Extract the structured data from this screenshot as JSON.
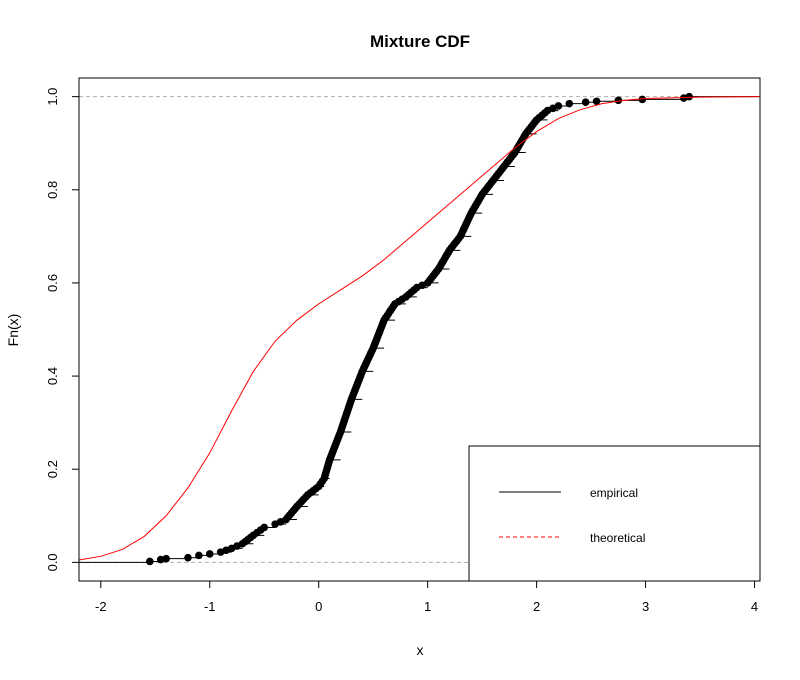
{
  "chart_data": {
    "type": "line",
    "title": "Mixture CDF",
    "xlabel": "x",
    "ylabel": "Fn(x)",
    "xlim": [
      -2.2,
      4.05
    ],
    "ylim": [
      -0.04,
      1.04
    ],
    "xticks": [
      "-2",
      "-1",
      "0",
      "1",
      "2",
      "3",
      "4"
    ],
    "yticks": [
      "0.0",
      "0.2",
      "0.4",
      "0.6",
      "0.8",
      "1.0"
    ],
    "reference_lines": [
      0,
      1
    ],
    "legend": {
      "placement": "bottom-right",
      "entries": [
        {
          "label": "empirical",
          "color": "#000000",
          "style": "solid"
        },
        {
          "label": "theoretical",
          "color": "#ff0000",
          "style": "dashed"
        }
      ]
    },
    "series": [
      {
        "name": "empirical",
        "color": "#000000",
        "points": [
          [
            -1.55,
            0.002
          ],
          [
            -1.45,
            0.006
          ],
          [
            -1.4,
            0.008
          ],
          [
            -1.2,
            0.01
          ],
          [
            -1.1,
            0.015
          ],
          [
            -1.0,
            0.018
          ],
          [
            -0.9,
            0.022
          ],
          [
            -0.8,
            0.03
          ],
          [
            -0.7,
            0.04
          ],
          [
            -0.6,
            0.058
          ],
          [
            -0.5,
            0.075
          ],
          [
            -0.4,
            0.082
          ],
          [
            -0.3,
            0.092
          ],
          [
            -0.2,
            0.12
          ],
          [
            -0.1,
            0.145
          ],
          [
            0.0,
            0.163
          ],
          [
            0.05,
            0.18
          ],
          [
            0.1,
            0.22
          ],
          [
            0.2,
            0.28
          ],
          [
            0.3,
            0.35
          ],
          [
            0.4,
            0.41
          ],
          [
            0.5,
            0.46
          ],
          [
            0.6,
            0.52
          ],
          [
            0.7,
            0.555
          ],
          [
            0.8,
            0.57
          ],
          [
            0.9,
            0.59
          ],
          [
            1.0,
            0.6
          ],
          [
            1.1,
            0.63
          ],
          [
            1.2,
            0.67
          ],
          [
            1.3,
            0.7
          ],
          [
            1.4,
            0.75
          ],
          [
            1.5,
            0.79
          ],
          [
            1.6,
            0.82
          ],
          [
            1.7,
            0.85
          ],
          [
            1.8,
            0.88
          ],
          [
            1.9,
            0.92
          ],
          [
            2.0,
            0.95
          ],
          [
            2.1,
            0.97
          ],
          [
            2.2,
            0.98
          ],
          [
            2.3,
            0.985
          ],
          [
            2.45,
            0.988
          ],
          [
            2.55,
            0.99
          ],
          [
            2.75,
            0.992
          ],
          [
            2.97,
            0.994
          ],
          [
            3.35,
            0.997
          ],
          [
            3.4,
            1.0
          ]
        ]
      },
      {
        "name": "theoretical",
        "color": "#ff0000",
        "points": [
          [
            -2.2,
            0.005
          ],
          [
            -2.0,
            0.013
          ],
          [
            -1.8,
            0.028
          ],
          [
            -1.6,
            0.056
          ],
          [
            -1.4,
            0.1
          ],
          [
            -1.2,
            0.16
          ],
          [
            -1.0,
            0.235
          ],
          [
            -0.8,
            0.325
          ],
          [
            -0.6,
            0.41
          ],
          [
            -0.4,
            0.475
          ],
          [
            -0.2,
            0.52
          ],
          [
            0.0,
            0.555
          ],
          [
            0.2,
            0.585
          ],
          [
            0.4,
            0.615
          ],
          [
            0.6,
            0.65
          ],
          [
            0.8,
            0.69
          ],
          [
            1.0,
            0.73
          ],
          [
            1.2,
            0.77
          ],
          [
            1.4,
            0.81
          ],
          [
            1.6,
            0.85
          ],
          [
            1.8,
            0.89
          ],
          [
            2.0,
            0.925
          ],
          [
            2.2,
            0.953
          ],
          [
            2.4,
            0.972
          ],
          [
            2.6,
            0.985
          ],
          [
            2.8,
            0.992
          ],
          [
            3.0,
            0.996
          ],
          [
            3.5,
            0.999
          ],
          [
            4.05,
            1.0
          ]
        ]
      }
    ]
  }
}
